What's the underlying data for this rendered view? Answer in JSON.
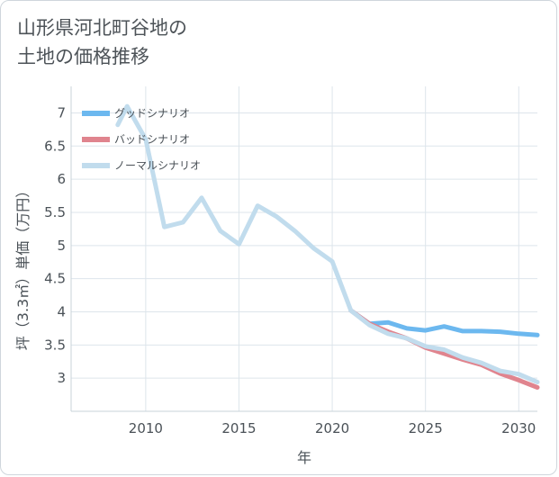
{
  "title_lines": [
    "山形県河北町谷地の",
    "土地の価格推移"
  ],
  "chart_data": {
    "type": "line",
    "title": "山形県河北町谷地の土地の価格推移",
    "xlabel": "年",
    "ylabel": "坪（3.3㎡）単価（万円）",
    "xlim": [
      2006,
      2031
    ],
    "ylim": [
      2.5,
      7.4
    ],
    "xticks": [
      2010,
      2015,
      2020,
      2025,
      2030
    ],
    "yticks": [
      3,
      3.5,
      4,
      4.5,
      5,
      5.5,
      6,
      6.5,
      7
    ],
    "ytick_labels": [
      "3",
      "3.5",
      "4",
      "4.5",
      "5",
      "5.5",
      "6",
      "6.5",
      "7"
    ],
    "legend_position": "top-left",
    "series": [
      {
        "name": "グッドシナリオ",
        "color": "#6cb8ef",
        "x": [
          2021,
          2022,
          2023,
          2024,
          2025,
          2026,
          2027,
          2028,
          2029,
          2030,
          2031
        ],
        "y": [
          4.02,
          3.82,
          3.84,
          3.75,
          3.72,
          3.78,
          3.71,
          3.71,
          3.7,
          3.67,
          3.65
        ]
      },
      {
        "name": "バッドシナリオ",
        "color": "#e0848e",
        "x": [
          2021,
          2022,
          2023,
          2024,
          2025,
          2026,
          2027,
          2028,
          2029,
          2030,
          2031
        ],
        "y": [
          4.02,
          3.82,
          3.7,
          3.6,
          3.46,
          3.37,
          3.28,
          3.2,
          3.07,
          2.97,
          2.86
        ]
      },
      {
        "name": "ノーマルシナリオ",
        "color": "#c1dced",
        "x": [
          2008.5,
          2009,
          2010,
          2011,
          2012,
          2013,
          2014,
          2015,
          2016,
          2017,
          2018,
          2019,
          2020,
          2021,
          2022,
          2023,
          2024,
          2025,
          2026,
          2027,
          2028,
          2029,
          2030,
          2031
        ],
        "y": [
          6.82,
          7.1,
          6.6,
          5.28,
          5.35,
          5.72,
          5.22,
          5.02,
          5.6,
          5.44,
          5.22,
          4.96,
          4.76,
          4.02,
          3.8,
          3.67,
          3.6,
          3.48,
          3.43,
          3.31,
          3.23,
          3.11,
          3.06,
          2.94
        ]
      }
    ]
  }
}
